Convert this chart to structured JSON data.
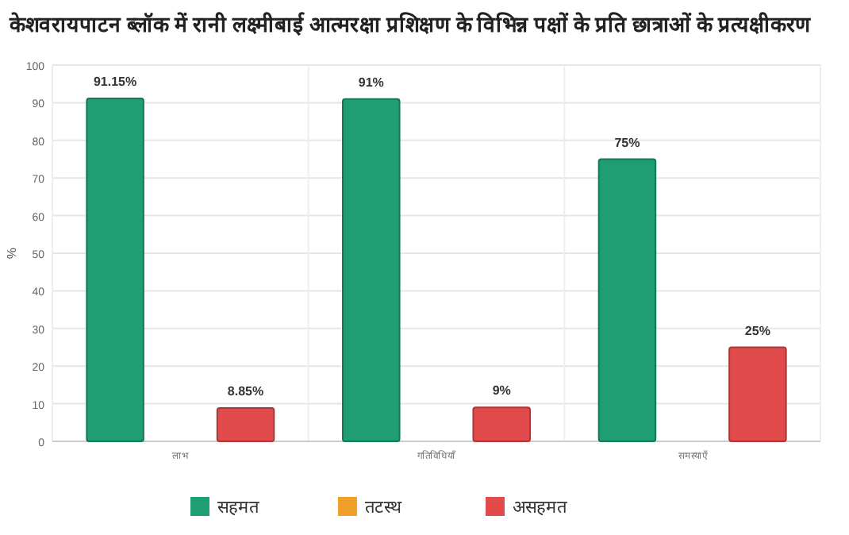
{
  "chart_data": {
    "type": "bar",
    "title": "केशवरायपाटन ब्लॉक में रानी लक्ष्मीबाई आत्मरक्षा प्रशिक्षण के विभिन्न पक्षों के प्रति छात्राओं के प्रत्यक्षीकरण",
    "ylabel": "%",
    "categories": [
      "लाभ",
      "गतिविधियाँ",
      "समस्याएँ"
    ],
    "series": [
      {
        "name": "सहमत",
        "color": "#1f9e74",
        "values": [
          91.15,
          91,
          75
        ],
        "value_labels": [
          "91.15%",
          "91%",
          "75%"
        ]
      },
      {
        "name": "तटस्थ",
        "color": "#f0a02a",
        "values": [
          0,
          0,
          0
        ],
        "value_labels": [
          null,
          null,
          null
        ]
      },
      {
        "name": "असहमत",
        "color": "#e24b4b",
        "values": [
          8.85,
          9,
          25
        ],
        "value_labels": [
          "8.85%",
          "9%",
          "25%"
        ]
      }
    ],
    "ylim": [
      0,
      100
    ],
    "yticks": [
      0,
      10,
      20,
      30,
      40,
      50,
      60,
      70,
      80,
      90,
      100
    ],
    "grid": true,
    "legend": "bottom"
  }
}
